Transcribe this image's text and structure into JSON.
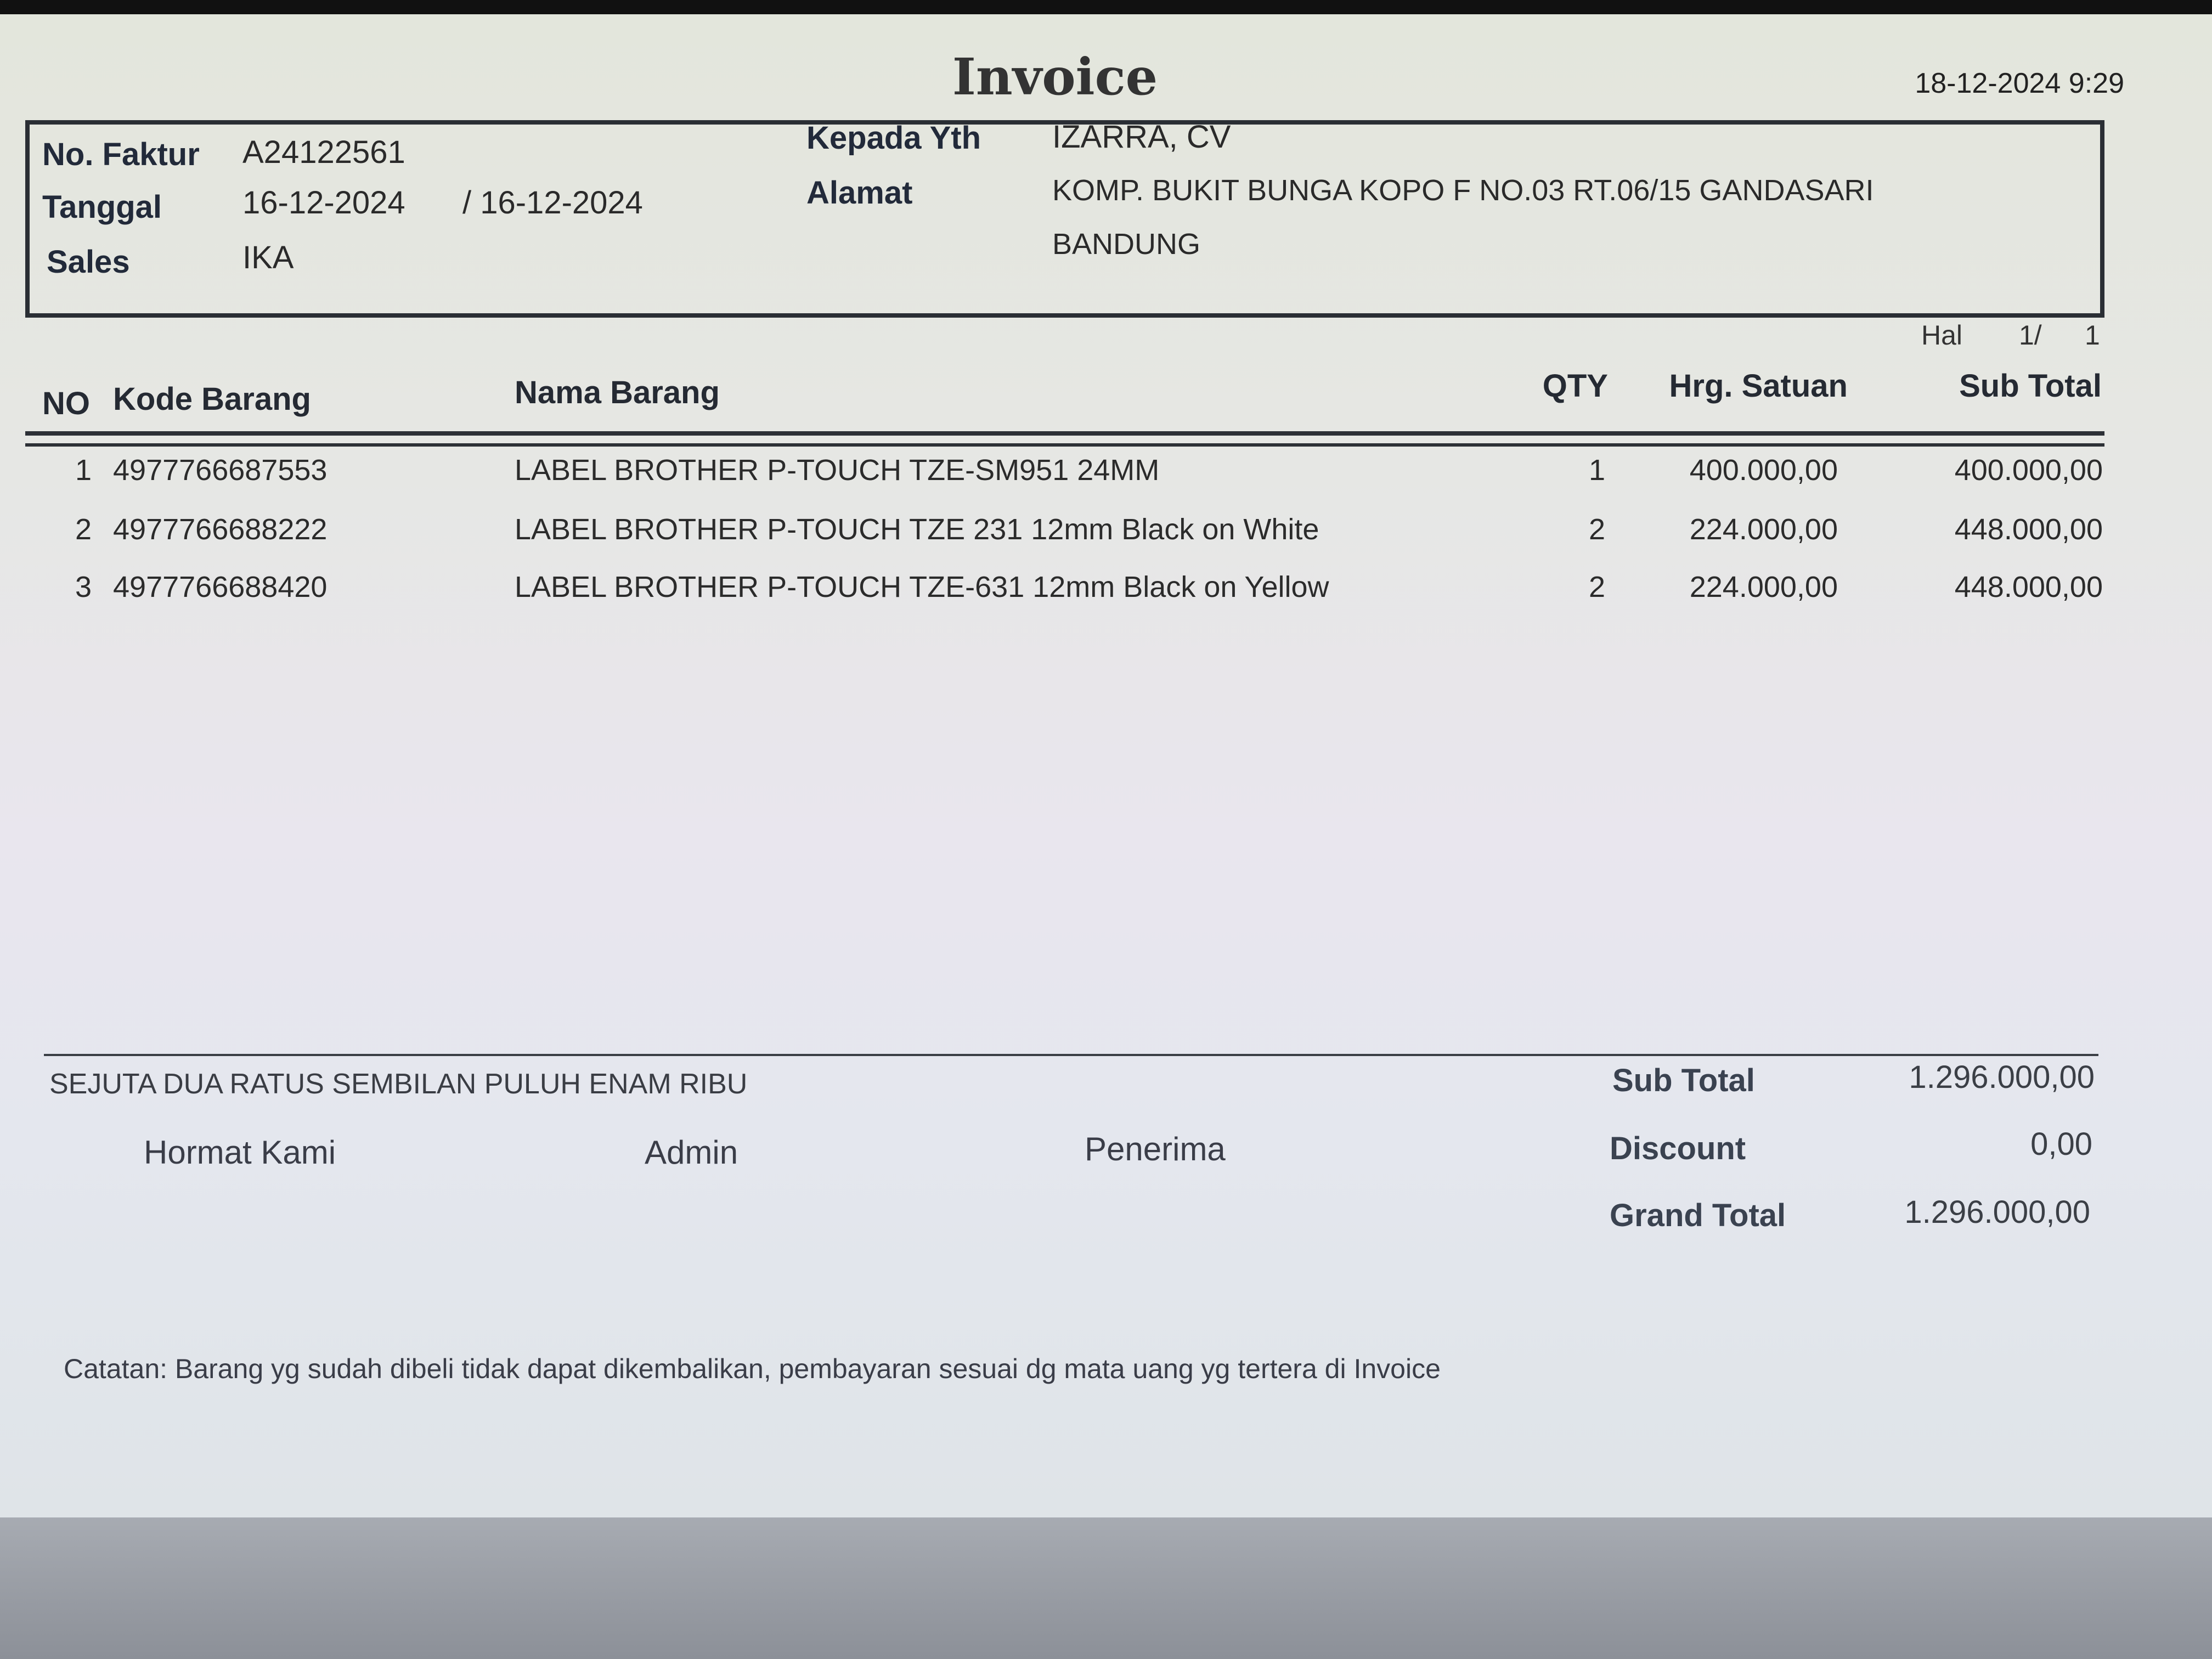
{
  "document": {
    "title": "Invoice",
    "printed_at": "18-12-2024 9:29"
  },
  "header": {
    "no_faktur_label": "No. Faktur",
    "no_faktur": "A24122561",
    "tanggal_label": "Tanggal",
    "tanggal": "16-12-2024",
    "tanggal_due": "/ 16-12-2024",
    "sales_label": "Sales",
    "sales": "IKA",
    "kepada_label": "Kepada Yth",
    "kepada": "IZARRA, CV",
    "alamat_label": "Alamat",
    "alamat_line1": "KOMP. BUKIT BUNGA KOPO F NO.03 RT.06/15 GANDASARI",
    "alamat_line2": "BANDUNG"
  },
  "page": {
    "label": "Hal",
    "current": "1/",
    "total": "1"
  },
  "table": {
    "columns": {
      "no": "NO",
      "kode": "Kode Barang",
      "nama": "Nama Barang",
      "qty": "QTY",
      "harga": "Hrg. Satuan",
      "subtotal": "Sub Total"
    },
    "rows": [
      {
        "no": "1",
        "kode": "4977766687553",
        "nama": "LABEL BROTHER P-TOUCH TZE-SM951 24MM",
        "qty": "1",
        "harga": "400.000,00",
        "subtotal": "400.000,00"
      },
      {
        "no": "2",
        "kode": "4977766688222",
        "nama": "LABEL BROTHER P-TOUCH TZE 231 12mm Black on  White",
        "qty": "2",
        "harga": "224.000,00",
        "subtotal": "448.000,00"
      },
      {
        "no": "3",
        "kode": "4977766688420",
        "nama": "LABEL BROTHER P-TOUCH TZE-631 12mm Black on Yellow",
        "qty": "2",
        "harga": "224.000,00",
        "subtotal": "448.000,00"
      }
    ]
  },
  "footer": {
    "terbilang": "SEJUTA DUA RATUS SEMBILAN PULUH ENAM RIBU",
    "hormat_kami": "Hormat Kami",
    "admin": "Admin",
    "penerima": "Penerima",
    "subtotal_label": "Sub Total",
    "subtotal": "1.296.000,00",
    "discount_label": "Discount",
    "discount": "0,00",
    "grand_total_label": "Grand Total",
    "grand_total": "1.296.000,00",
    "catatan": "Catatan: Barang yg sudah dibeli tidak dapat dikembalikan, pembayaran sesuai dg mata uang yg tertera di Invoice"
  }
}
